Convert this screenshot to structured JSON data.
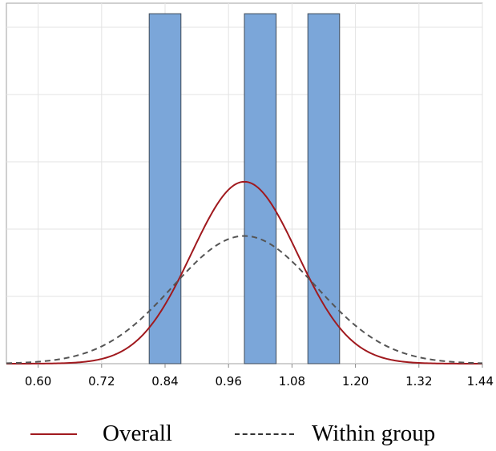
{
  "chart_data": {
    "type": "bar",
    "bins": [
      {
        "start": 0.81,
        "end": 0.87,
        "height": 1
      },
      {
        "start": 0.99,
        "end": 1.05,
        "height": 1
      },
      {
        "start": 1.11,
        "end": 1.17,
        "height": 1
      }
    ],
    "xlim": [
      0.54,
      1.44
    ],
    "ylim": [
      0,
      1.03
    ],
    "x_ticks": [
      "0.60",
      "0.72",
      "0.84",
      "0.96",
      "1.08",
      "1.20",
      "1.32",
      "1.44"
    ],
    "x_tick_values": [
      0.6,
      0.72,
      0.84,
      0.96,
      1.08,
      1.2,
      1.32,
      1.44
    ],
    "grid": true,
    "legend_position": "bottom",
    "series": [
      {
        "name": "Overall",
        "style": "solid",
        "color": "#a0191e",
        "mean": 0.99,
        "sd": 0.1,
        "peak": 0.52
      },
      {
        "name": "Within group",
        "style": "dashed",
        "color": "#555555",
        "mean": 0.99,
        "sd": 0.135,
        "peak": 0.365
      }
    ],
    "bar_color": "#7ba6d9"
  },
  "legend": {
    "overall_label": "Overall",
    "within_label": "Within group"
  }
}
